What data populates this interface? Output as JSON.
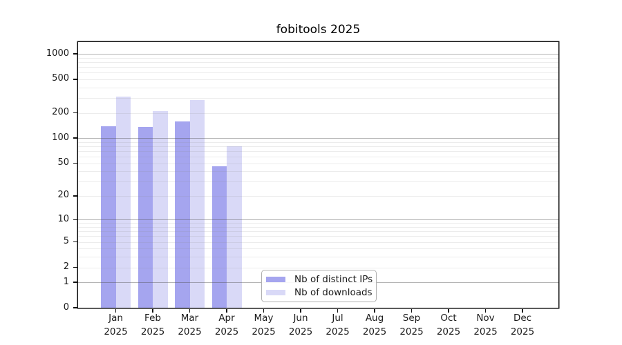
{
  "chart_data": {
    "type": "bar",
    "title": "fobitools 2025",
    "x_year_label": "2025",
    "categories": [
      "Jan",
      "Feb",
      "Mar",
      "Apr",
      "May",
      "Jun",
      "Jul",
      "Aug",
      "Sep",
      "Oct",
      "Nov",
      "Dec"
    ],
    "series": [
      {
        "name": "Nb of distinct IPs",
        "color": "#a5a5ef",
        "values": [
          139,
          135,
          159,
          46,
          null,
          null,
          null,
          null,
          null,
          null,
          null,
          null
        ]
      },
      {
        "name": "Nb of downloads",
        "color": "#d9d9f7",
        "values": [
          310,
          211,
          284,
          80,
          null,
          null,
          null,
          null,
          null,
          null,
          null,
          null
        ]
      }
    ],
    "xlabel": "",
    "ylabel": "",
    "y_scale": "log1p",
    "y_ticks": [
      0,
      1,
      2,
      5,
      10,
      20,
      50,
      100,
      200,
      500,
      1000
    ],
    "ylim": [
      0,
      1380
    ],
    "grid": "horizontal major at powers of 10, minor at 2-9 per decade",
    "legend_position": "inside-bottom-center"
  },
  "colors": {
    "major_grid": "#4d4d4d",
    "minor_grid": "#8a8a8a",
    "axis": "#111111",
    "text": "#1a1a1a",
    "background": "#ffffff"
  }
}
